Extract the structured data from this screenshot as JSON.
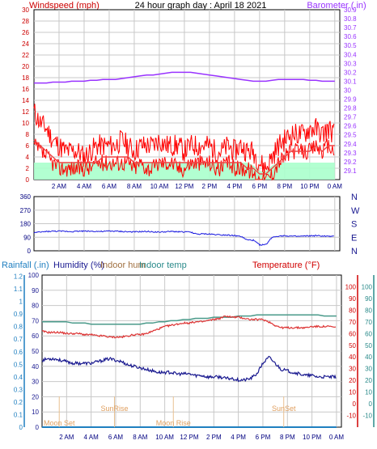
{
  "header": {
    "left_label": "Windspeed (mph)",
    "title": "24 hour graph day : April 18 2021",
    "right_label": "Barometer (.in)"
  },
  "time_ticks": [
    "2 AM",
    "4 AM",
    "6 AM",
    "8 AM",
    "10 AM",
    "12 PM",
    "2 PM",
    "4 PM",
    "6 PM",
    "8 PM",
    "10 PM",
    "0 AM"
  ],
  "panels": {
    "wind": {
      "y_ticks": [
        0,
        2,
        4,
        6,
        8,
        10,
        12,
        14,
        16,
        18,
        20,
        22,
        24,
        26,
        28,
        30
      ],
      "baro_ticks": [
        "29.1",
        "29.2",
        "29.3",
        "29.4",
        "29.5",
        "29.6",
        "29.7",
        "29.8",
        "29.9",
        "30",
        "30.1",
        "30.2",
        "30.3",
        "30.4",
        "30.5",
        "30.6",
        "30.7",
        "30.8",
        "30.9"
      ]
    },
    "direction": {
      "y_ticks": [
        0,
        90,
        180,
        270,
        360
      ],
      "compass": [
        "N",
        "W",
        "S",
        "E",
        "N"
      ]
    },
    "lower": {
      "left_header": "Rainfall (.in)",
      "humidity_header": "Humidity (%)",
      "indoor_hum_header": "Indoor hum",
      "indoor_temp_header": "Indoor temp",
      "temp_header": "Temperature (°F)",
      "rain_ticks": [
        "0",
        "0.1",
        "0.2",
        "0.3",
        "0.4",
        "0.5",
        "0.6",
        "0.7",
        "0.8",
        "0.9",
        "1",
        "1.1",
        "1.2"
      ],
      "hum_ticks": [
        0,
        10,
        20,
        30,
        40,
        50,
        60,
        70,
        80,
        90,
        100
      ],
      "temp_ticks": [
        -10,
        0,
        10,
        20,
        30,
        40,
        50,
        60,
        70,
        80,
        90,
        100
      ],
      "indoor_ticks": [
        -10,
        0,
        10,
        20,
        30,
        40,
        50,
        60,
        70,
        80,
        90,
        100
      ],
      "annotations": {
        "moon_set": "Moon Set",
        "sunrise": "SunRise",
        "moon_rise": "Moon Rise",
        "sunset": "SunSet"
      }
    }
  },
  "colors": {
    "wind": "#ff0000",
    "gust": "#ff0000",
    "wind_avg": "#ee4444",
    "baro": "#9933ff",
    "direction": "#1a1ae0",
    "temperature": "#dd3333",
    "humidity": "#1a1a90",
    "indoor_hum": "#a07040",
    "indoor_temp": "#4a9a8a",
    "rain": "#1f7fc0",
    "wind_bg": "#aaffcc",
    "axis_dark_red": "#cc0000",
    "axis_red": "#d00000",
    "axis_teal": "#2a8a8a"
  },
  "chart_data": [
    {
      "type": "line",
      "panel": "wind",
      "xlim": [
        0,
        24
      ],
      "ylim": [
        0,
        30
      ],
      "y2lim": [
        29.0,
        30.9
      ],
      "x": [
        0,
        0.5,
        1,
        1.5,
        2,
        2.5,
        3,
        3.5,
        4,
        4.5,
        5,
        5.5,
        6,
        6.5,
        7,
        7.5,
        8,
        8.5,
        9,
        9.5,
        10,
        10.5,
        11,
        11.5,
        12,
        12.5,
        13,
        13.5,
        14,
        14.5,
        15,
        15.5,
        16,
        16.5,
        17,
        17.5,
        18,
        18.5,
        19,
        19.5,
        20,
        20.5,
        21,
        21.5,
        22,
        22.5,
        23,
        23.5,
        24
      ],
      "series": [
        {
          "key": "gust",
          "values": [
            12,
            10,
            9,
            7,
            6,
            5,
            5,
            5,
            4,
            5,
            6,
            6,
            6,
            6,
            7,
            6,
            5,
            6,
            6,
            6,
            7,
            6,
            6,
            6,
            5,
            6,
            6,
            6,
            6,
            5,
            5,
            6,
            5,
            6,
            5,
            5,
            3,
            2,
            4,
            6,
            7,
            8,
            8,
            8,
            9,
            9,
            8,
            9,
            8
          ]
        },
        {
          "key": "wind",
          "values": [
            6,
            5,
            4,
            3,
            2,
            2,
            2,
            2,
            2,
            2,
            3,
            3,
            3,
            3,
            3,
            3,
            2,
            3,
            2,
            2,
            3,
            3,
            3,
            2,
            2,
            3,
            3,
            3,
            3,
            2,
            2,
            3,
            2,
            2,
            2,
            1,
            0,
            0,
            1,
            3,
            4,
            5,
            5,
            5,
            5,
            6,
            5,
            6,
            5
          ]
        },
        {
          "key": "wind_avg",
          "values": [
            7,
            6,
            5,
            4,
            3,
            3,
            3,
            3,
            3,
            3,
            3,
            4,
            4,
            4,
            4,
            4,
            3,
            3,
            3,
            3,
            3,
            3,
            3,
            3,
            3,
            3,
            3,
            3,
            3,
            3,
            3,
            3,
            3,
            3,
            2,
            2,
            1,
            1,
            2,
            3,
            4,
            5,
            5,
            5,
            5,
            6,
            5,
            6,
            6
          ]
        },
        {
          "key": "baro",
          "values": [
            30.08,
            30.08,
            30.08,
            30.09,
            30.09,
            30.09,
            30.1,
            30.1,
            30.1,
            30.11,
            30.11,
            30.12,
            30.12,
            30.12,
            30.13,
            30.14,
            30.15,
            30.16,
            30.17,
            30.17,
            30.18,
            30.19,
            30.2,
            30.2,
            30.2,
            30.2,
            30.19,
            30.18,
            30.17,
            30.16,
            30.15,
            30.14,
            30.13,
            30.12,
            30.11,
            30.1,
            30.1,
            30.1,
            30.11,
            30.12,
            30.12,
            30.12,
            30.12,
            30.12,
            30.11,
            30.11,
            30.1,
            30.1,
            30.1
          ]
        }
      ]
    },
    {
      "type": "line",
      "panel": "direction",
      "xlim": [
        0,
        24
      ],
      "ylim": [
        0,
        360
      ],
      "x": [
        0,
        0.5,
        1,
        1.5,
        2,
        2.5,
        3,
        3.5,
        4,
        4.5,
        5,
        5.5,
        6,
        6.5,
        7,
        7.5,
        8,
        8.5,
        9,
        9.5,
        10,
        10.5,
        11,
        11.5,
        12,
        12.5,
        13,
        13.5,
        14,
        14.5,
        15,
        15.5,
        16,
        16.5,
        17,
        17.5,
        18,
        18.5,
        19,
        19.5,
        20,
        20.5,
        21,
        21.5,
        22,
        22.5,
        23,
        23.5,
        24
      ],
      "series": [
        {
          "key": "direction",
          "values": [
            120,
            124,
            128,
            130,
            130,
            129,
            128,
            130,
            131,
            130,
            129,
            128,
            131,
            130,
            128,
            126,
            125,
            127,
            128,
            126,
            124,
            126,
            128,
            127,
            125,
            124,
            110,
            112,
            111,
            108,
            106,
            105,
            100,
            96,
            72,
            70,
            40,
            40,
            90,
            98,
            100,
            97,
            95,
            97,
            99,
            100,
            98,
            96,
            95
          ]
        }
      ]
    },
    {
      "type": "line",
      "panel": "lower",
      "xlim": [
        0,
        24
      ],
      "ylim": [
        0,
        100
      ],
      "y2lim": [
        -20,
        110
      ],
      "x": [
        0,
        0.5,
        1,
        1.5,
        2,
        2.5,
        3,
        3.5,
        4,
        4.5,
        5,
        5.5,
        6,
        6.5,
        7,
        7.5,
        8,
        8.5,
        9,
        9.5,
        10,
        10.5,
        11,
        11.5,
        12,
        12.5,
        13,
        13.5,
        14,
        14.5,
        15,
        15.5,
        16,
        16.5,
        17,
        17.5,
        18,
        18.5,
        19,
        19.5,
        20,
        20.5,
        21,
        21.5,
        22,
        22.5,
        23,
        23.5,
        24
      ],
      "series": [
        {
          "key": "indoor_temp",
          "values": [
            70,
            70,
            70,
            70,
            70,
            69,
            69,
            69,
            68,
            68,
            68,
            68,
            68,
            68,
            68,
            68,
            68,
            69,
            69,
            70,
            70,
            71,
            71,
            72,
            72,
            73,
            73,
            73,
            74,
            74,
            74,
            74,
            75,
            75,
            75,
            76,
            76,
            76,
            76,
            76,
            76,
            76,
            76,
            76,
            76,
            76,
            75,
            75,
            75
          ]
        },
        {
          "key": "temperature",
          "values": [
            62,
            61,
            61,
            61,
            60,
            60,
            60,
            59,
            59,
            58,
            58,
            57,
            57,
            57,
            58,
            59,
            59,
            60,
            62,
            64,
            66,
            67,
            68,
            69,
            69,
            70,
            70,
            71,
            72,
            73,
            75,
            74,
            74,
            73,
            72,
            72,
            72,
            70,
            67,
            65,
            65,
            65,
            65,
            65,
            66,
            66,
            66,
            66,
            65
          ]
        },
        {
          "key": "humidity",
          "values": [
            44,
            45,
            45,
            44,
            43,
            42,
            42,
            42,
            42,
            43,
            44,
            45,
            44,
            43,
            41,
            40,
            39,
            38,
            37,
            36,
            36,
            36,
            35,
            35,
            35,
            34,
            34,
            33,
            33,
            33,
            32,
            32,
            31,
            31,
            32,
            35,
            42,
            46,
            42,
            38,
            37,
            36,
            35,
            34,
            34,
            33,
            33,
            33,
            33
          ]
        },
        {
          "key": "rain",
          "values": [
            0,
            0,
            0,
            0,
            0,
            0,
            0,
            0,
            0,
            0,
            0,
            0,
            0,
            0,
            0,
            0,
            0,
            0,
            0,
            0,
            0,
            0,
            0,
            0,
            0,
            0,
            0,
            0,
            0,
            0,
            0,
            0,
            0,
            0,
            0,
            0,
            0,
            0,
            0,
            0,
            0,
            0,
            0,
            0,
            0,
            0,
            0,
            0,
            0
          ]
        }
      ]
    }
  ]
}
